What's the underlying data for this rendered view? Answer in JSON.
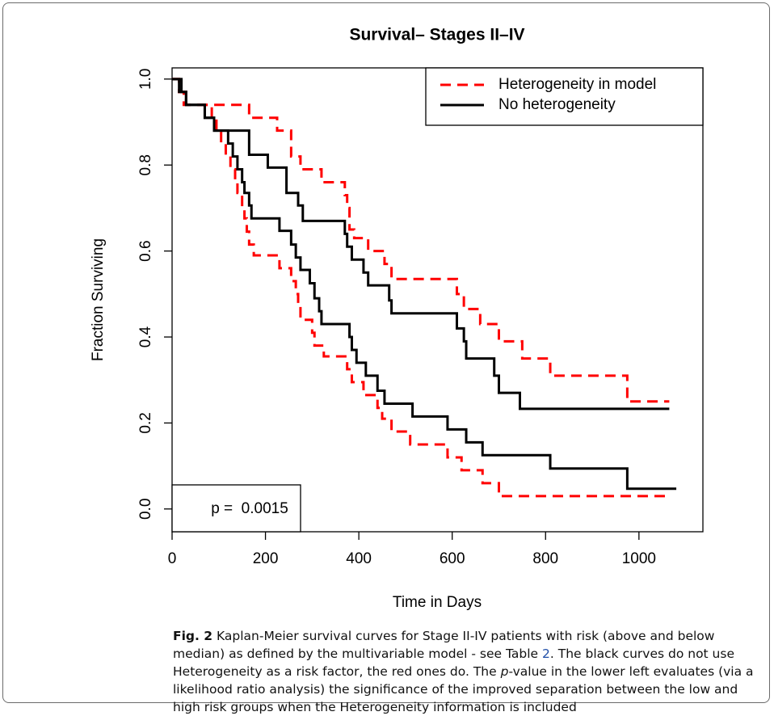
{
  "chart_data": {
    "type": "step",
    "title": "Survival– Stages II–IV",
    "x_label": "Time in Days",
    "y_label": "Fraction Surviving",
    "xlim": [
      0,
      1137
    ],
    "ylim": [
      -0.053,
      1.026
    ],
    "xticks": [
      0,
      200,
      400,
      600,
      800,
      1000
    ],
    "yticks": [
      {
        "value": 0,
        "label": "0.0"
      },
      0.2,
      0.4,
      0.6,
      0.8,
      {
        "value": 1,
        "label": "1.0"
      }
    ],
    "legend": "top-right",
    "annotation": "p =  0.0015",
    "series": [
      {
        "name": "Heterogeneity in model",
        "color": "#ff0000",
        "dashed": true,
        "curves": [
          {
            "x": [
              0,
              15,
              25,
              90,
              165,
              225,
              255,
              275,
              320,
              370,
              375,
              380,
              390,
              420,
              455,
              470,
              610,
              625,
              660,
              700,
              750,
              810,
              975,
              1065
            ],
            "values": [
              1.0,
              0.97,
              0.94,
              0.94,
              0.91,
              0.88,
              0.82,
              0.79,
              0.76,
              0.73,
              0.7,
              0.65,
              0.63,
              0.6,
              0.57,
              0.535,
              0.5,
              0.465,
              0.43,
              0.39,
              0.35,
              0.31,
              0.25,
              0.25
            ]
          },
          {
            "x": [
              0,
              15,
              30,
              85,
              95,
              105,
              115,
              125,
              135,
              140,
              150,
              155,
              160,
              165,
              175,
              230,
              255,
              265,
              270,
              275,
              300,
              305,
              325,
              375,
              385,
              410,
              440,
              450,
              470,
              510,
              590,
              620,
              665,
              700,
              1065
            ],
            "values": [
              1.0,
              0.97,
              0.94,
              0.91,
              0.88,
              0.85,
              0.82,
              0.79,
              0.765,
              0.735,
              0.7,
              0.676,
              0.645,
              0.615,
              0.59,
              0.56,
              0.53,
              0.5,
              0.47,
              0.44,
              0.41,
              0.38,
              0.355,
              0.325,
              0.295,
              0.265,
              0.235,
              0.21,
              0.18,
              0.15,
              0.12,
              0.09,
              0.06,
              0.03,
              0.03
            ]
          }
        ]
      },
      {
        "name": "No heterogeneity",
        "color": "#000000",
        "dashed": false,
        "curves": [
          {
            "x": [
              0,
              15,
              30,
              70,
              90,
              165,
              205,
              245,
              270,
              280,
              370,
              375,
              385,
              410,
              420,
              465,
              470,
              610,
              625,
              630,
              690,
              700,
              745,
              1065
            ],
            "values": [
              1.0,
              0.97,
              0.94,
              0.91,
              0.88,
              0.824,
              0.794,
              0.735,
              0.706,
              0.67,
              0.64,
              0.61,
              0.58,
              0.55,
              0.52,
              0.485,
              0.455,
              0.42,
              0.39,
              0.35,
              0.31,
              0.27,
              0.233,
              0.233
            ]
          },
          {
            "x": [
              0,
              20,
              30,
              70,
              90,
              120,
              130,
              140,
              150,
              155,
              165,
              170,
              230,
              255,
              265,
              275,
              295,
              305,
              315,
              320,
              380,
              385,
              395,
              415,
              440,
              455,
              515,
              590,
              630,
              665,
              810,
              975,
              1080
            ],
            "values": [
              1.0,
              0.97,
              0.94,
              0.91,
              0.88,
              0.85,
              0.82,
              0.79,
              0.76,
              0.735,
              0.706,
              0.676,
              0.647,
              0.615,
              0.585,
              0.556,
              0.525,
              0.49,
              0.46,
              0.43,
              0.4,
              0.37,
              0.34,
              0.31,
              0.275,
              0.245,
              0.215,
              0.185,
              0.155,
              0.125,
              0.094,
              0.047,
              0.047
            ]
          }
        ]
      }
    ]
  },
  "caption_label": "Fig. 2",
  "caption": [
    " Kaplan-Meier survival curves for Stage II-IV patients with risk (above and below median) as defined by the multivariable model - see Table ",
    "2",
    ". The black curves do not use Heterogeneity as a risk factor, the red ones do. The ",
    "p",
    "-value in the lower left evaluates (via a likelihood ratio analysis) the significance of the improved separation between the low and high risk groups when the Heterogeneity information is included"
  ]
}
